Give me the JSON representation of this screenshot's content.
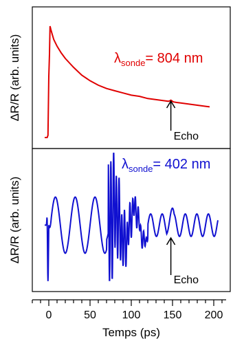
{
  "chart_data": [
    {
      "type": "line",
      "ylabel": "ΔR/R (arb. units)",
      "color": "#e00000",
      "annotation": {
        "lambda": "λ",
        "subscript": "sonde",
        "value": "= 804 nm"
      },
      "echo": {
        "label": "Echo",
        "x": 148
      },
      "x": [
        -5,
        -2,
        -1,
        0,
        0.8,
        1.5,
        2.5,
        4,
        6,
        8,
        10,
        15,
        20,
        25,
        30,
        40,
        50,
        60,
        70,
        80,
        90,
        100,
        110,
        120,
        130,
        140,
        145,
        147,
        148,
        149,
        151,
        155,
        160,
        170,
        180,
        190,
        195
      ],
      "y": [
        0.0,
        0.0,
        0.02,
        0.55,
        0.75,
        1.0,
        0.97,
        0.93,
        0.88,
        0.85,
        0.82,
        0.76,
        0.71,
        0.67,
        0.63,
        0.56,
        0.51,
        0.47,
        0.44,
        0.42,
        0.4,
        0.38,
        0.37,
        0.35,
        0.34,
        0.33,
        0.325,
        0.33,
        0.335,
        0.33,
        0.32,
        0.315,
        0.31,
        0.3,
        0.29,
        0.28,
        0.275
      ]
    },
    {
      "type": "line",
      "ylabel": "ΔR/R (arb. units)",
      "xlabel": "Temps (ps)",
      "color": "#1010d0",
      "annotation": {
        "lambda": "λ",
        "subscript": "sonde",
        "value": "= 402 nm"
      },
      "echo": {
        "label": "Echo",
        "x": 148
      },
      "xlim": [
        -20,
        220
      ],
      "xticks": [
        0,
        50,
        100,
        150,
        200
      ],
      "ylim": [
        -1.3,
        1.5
      ]
    }
  ]
}
